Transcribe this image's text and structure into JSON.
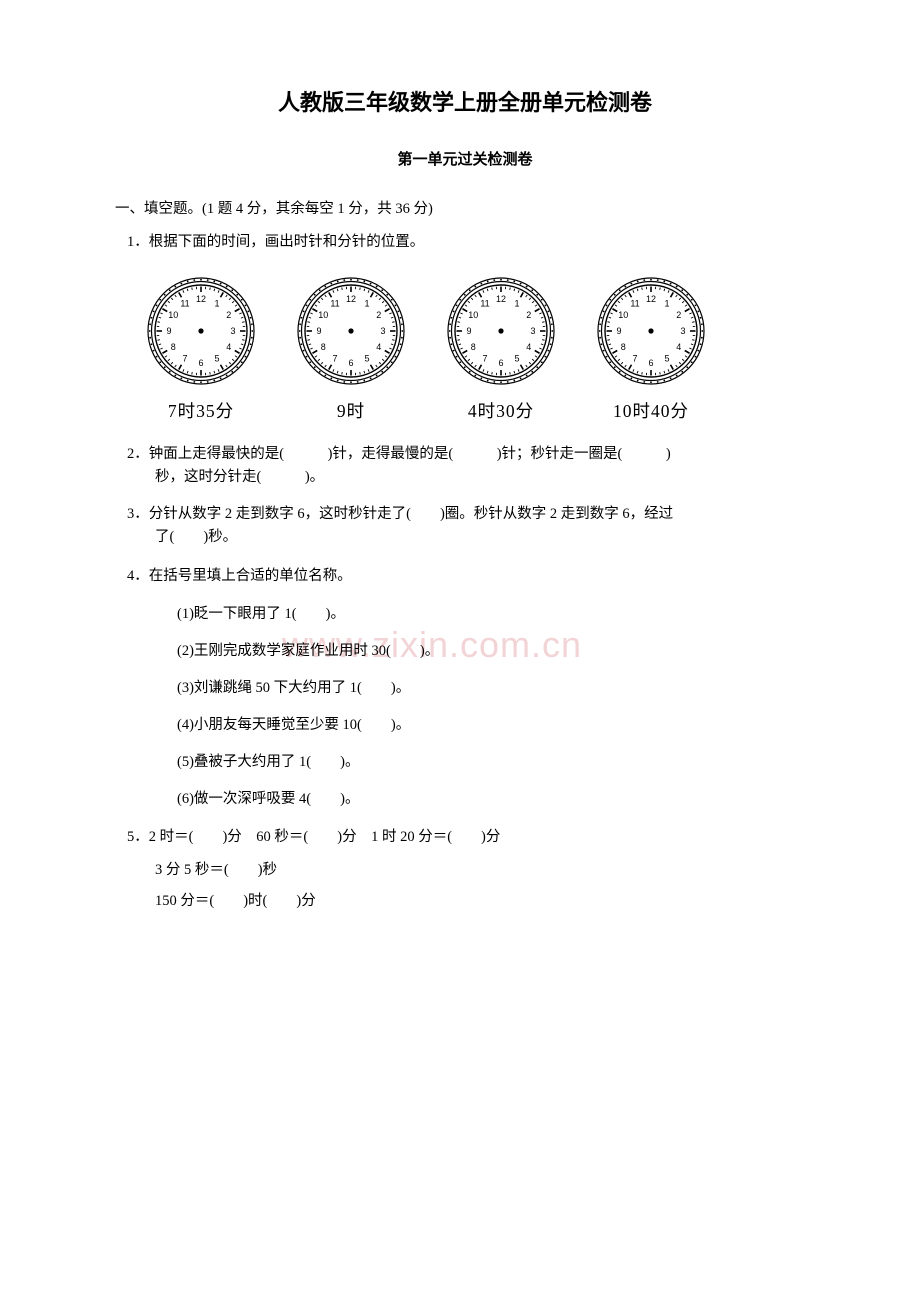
{
  "title": "人教版三年级数学上册全册单元检测卷",
  "subtitle": "第一单元过关检测卷",
  "section1_header": "一、填空题。(1 题 4 分，其余每空 1 分，共 36 分)",
  "q1": "1．根据下面的时间，画出时针和分针的位置。",
  "clocks": [
    {
      "label": "7时35分"
    },
    {
      "label": "9时"
    },
    {
      "label": "4时30分"
    },
    {
      "label": "10时40分"
    }
  ],
  "q2a": "2．钟面上走得最快的是(　　　)针，走得最慢的是(　　　)针；秒针走一圈是(　　　)",
  "q2b": "秒，这时分针走(　　　)。",
  "q3a": "3．分针从数字 2 走到数字 6，这时秒针走了(　　)圈。秒针从数字 2 走到数字 6，经过",
  "q3b": "了(　　)秒。",
  "q4": "4．在括号里填上合适的单位名称。",
  "q4_1": "(1)眨一下眼用了 1(　　)。",
  "q4_2": "(2)王刚完成数学家庭作业用时 30(　　)。",
  "q4_3": "(3)刘谦跳绳 50 下大约用了 1(　　)。",
  "q4_4": "(4)小朋友每天睡觉至少要 10(　　)。",
  "q4_5": "(5)叠被子大约用了 1(　　)。",
  "q4_6": "(6)做一次深呼吸要 4(　　)。",
  "q5a": "5．2 时＝(　　)分　60 秒＝(　　)分　1 时 20 分＝(　　)分",
  "q5b": "3 分 5 秒＝(　　)秒",
  "q5c": "150 分＝(　　)时(　　)分",
  "watermark": "www.zixin.com.cn",
  "clock_svg": {
    "size": 112,
    "outer_radius": 53,
    "face_radius": 46,
    "hour_font": 9,
    "center_dot": 2.6,
    "stroke": "#000000",
    "fill": "#ffffff"
  }
}
